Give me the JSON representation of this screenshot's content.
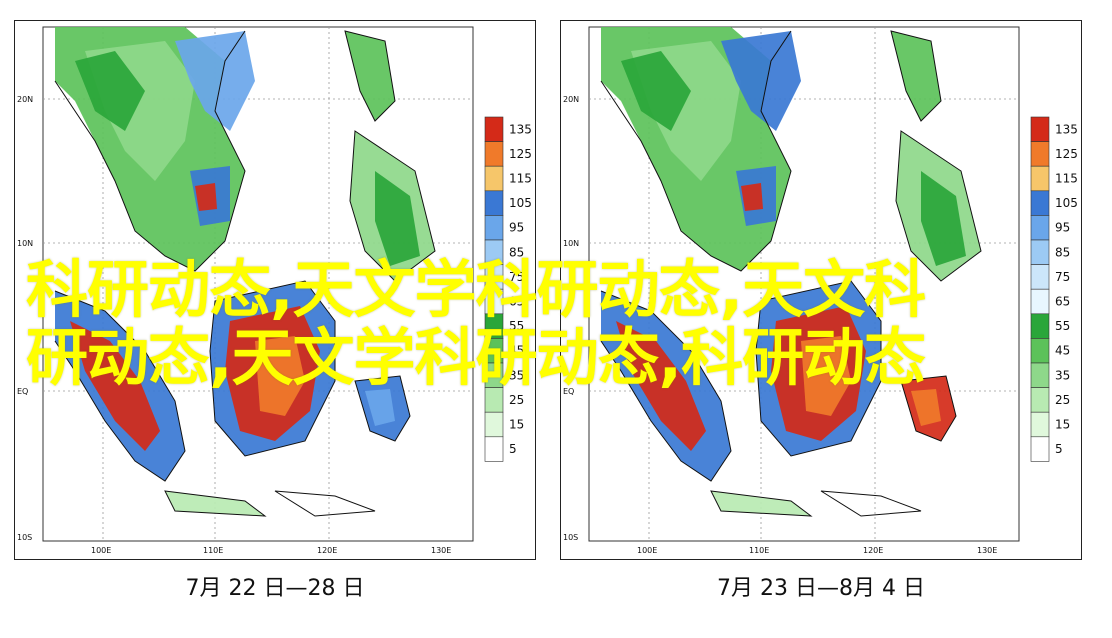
{
  "panels": [
    {
      "id": "left",
      "caption": "7月 22 日—28 日",
      "lat_labels": [
        "20N",
        "10N",
        "EQ",
        "10S"
      ],
      "lon_labels": [
        "100E",
        "110E",
        "120E",
        "130E"
      ]
    },
    {
      "id": "right",
      "caption": "7月 23 日—8月 4 日",
      "lat_labels": [
        "20N",
        "10N",
        "EQ",
        "10S"
      ],
      "lon_labels": [
        "100E",
        "110E",
        "120E",
        "130E"
      ]
    }
  ],
  "legend": {
    "levels": [
      "135",
      "125",
      "115",
      "105",
      "95",
      "85",
      "75",
      "65",
      "55",
      "45",
      "35",
      "25",
      "15",
      "5"
    ],
    "colors": [
      "#d42a18",
      "#f07a2a",
      "#f6c66a",
      "#3a78d4",
      "#6aa6ea",
      "#9ccaf4",
      "#cce6fa",
      "#e8f6ff",
      "#2aa63a",
      "#5cc25a",
      "#8ed88a",
      "#b8eab2",
      "#e0f8dc",
      "#ffffff"
    ]
  },
  "overlay": {
    "line1": "科研动态,天文学科研动态,天文科",
    "line2": "研动态,天文学科研动态,科研动态"
  }
}
